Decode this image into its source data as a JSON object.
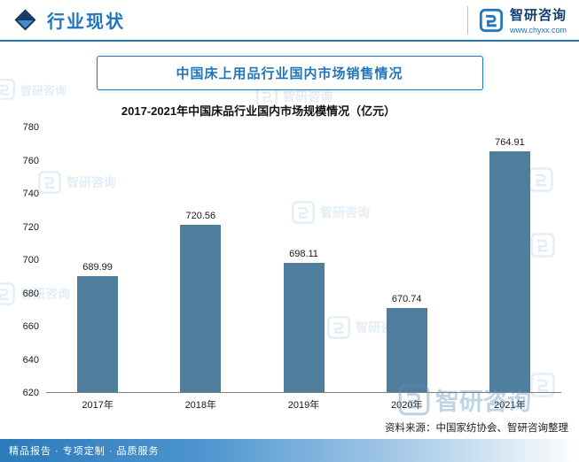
{
  "header": {
    "section_title": "行业现状",
    "brand": {
      "name": "智研咨询",
      "url": "www.chyxx.com"
    }
  },
  "banner": {
    "title": "中国床上用品行业国内市场销售情况"
  },
  "chart_data": {
    "type": "bar",
    "title": "2017-2021年中国床品行业国内市场规模情况（亿元）",
    "categories": [
      "2017年",
      "2018年",
      "2019年",
      "2020年",
      "2021年"
    ],
    "values": [
      689.99,
      720.56,
      698.11,
      670.74,
      764.91
    ],
    "ylabel": "",
    "xlabel": "",
    "ylim": [
      620,
      780
    ],
    "ytick_step": 20,
    "bar_color": "#4f7d9c",
    "grid": false,
    "legend": "none"
  },
  "footer": {
    "source": "资料来源：中国家纺协会、智研咨询整理",
    "services": "精品报告 · 专项定制 · 品质服务"
  },
  "watermark": {
    "text": "智研咨询"
  }
}
